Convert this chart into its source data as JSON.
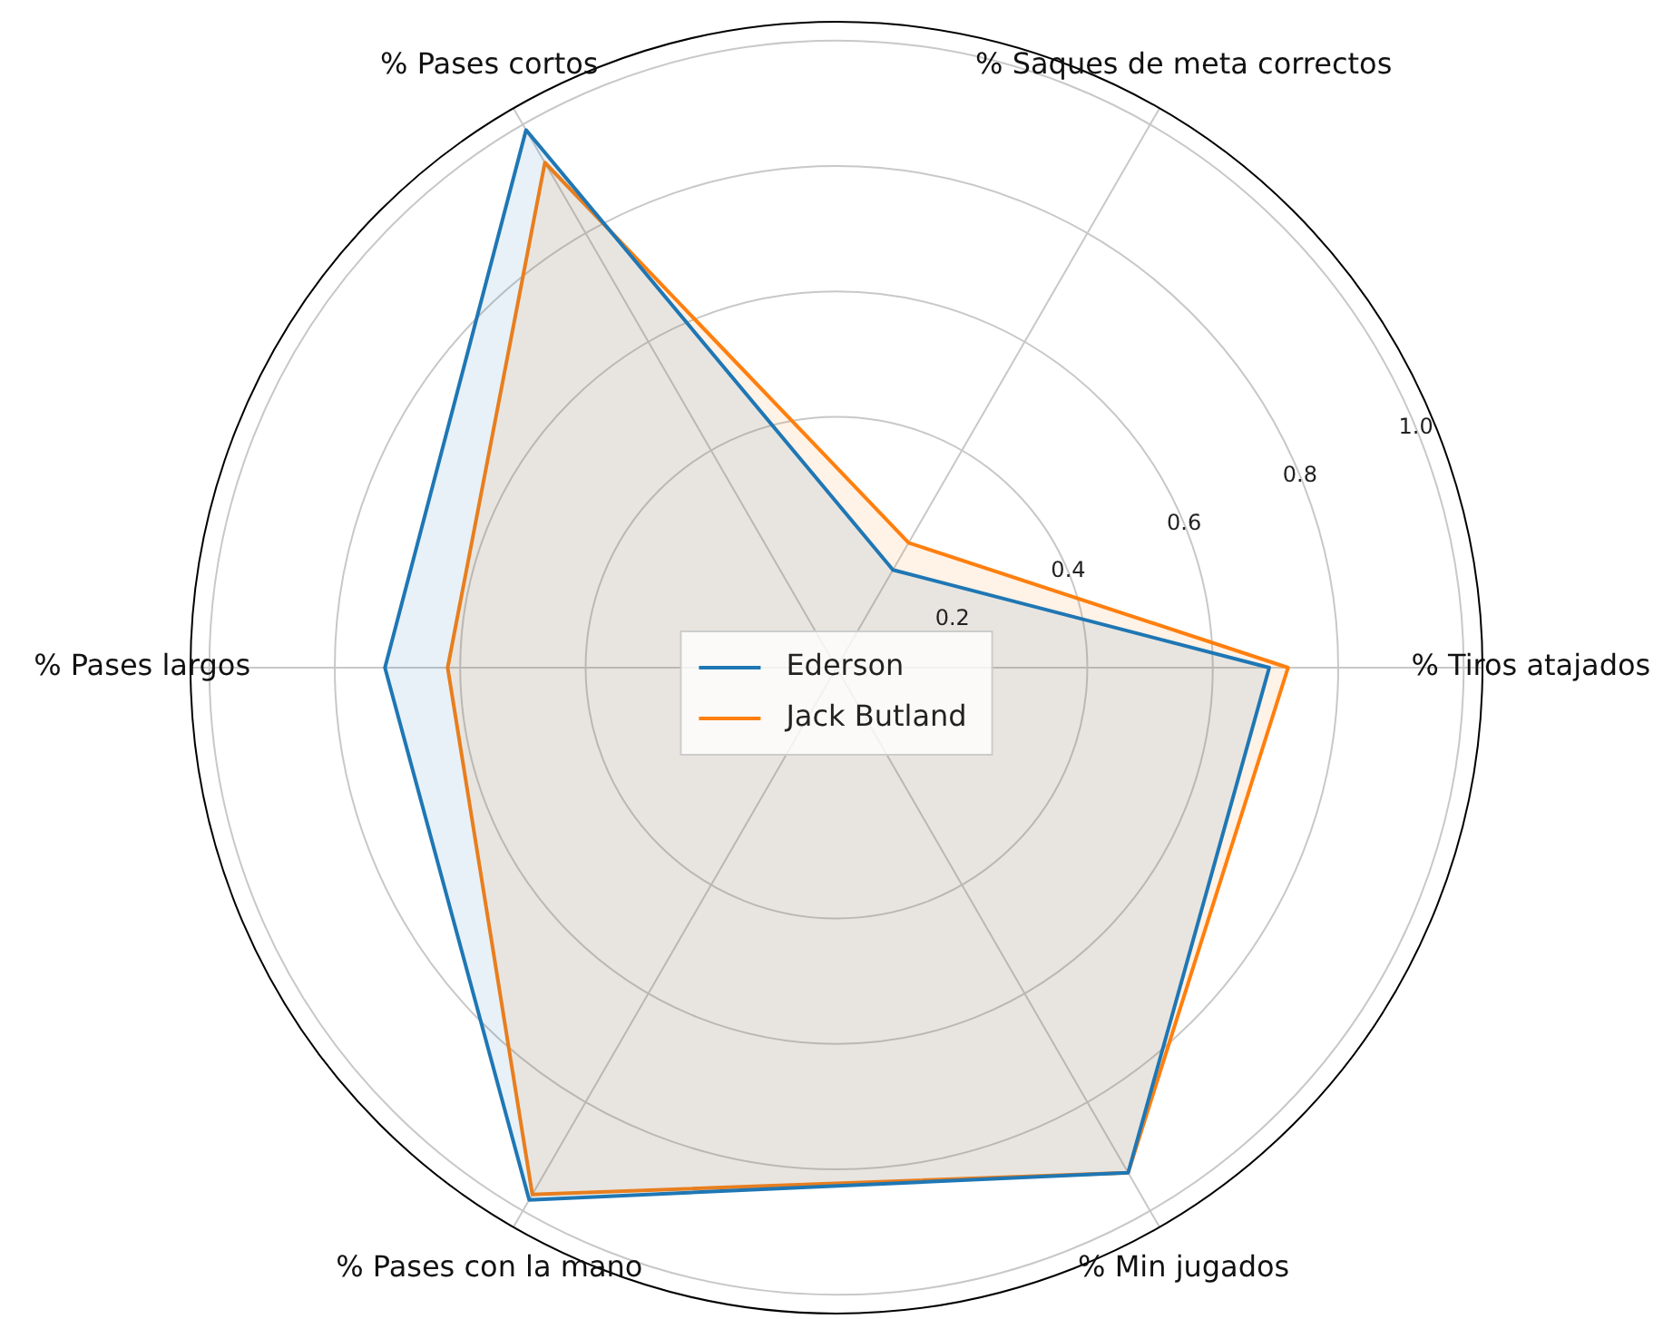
{
  "chart_data": {
    "type": "radar",
    "categories": [
      "% Saques de meta correctos",
      "% Tiros atajados",
      "% Min jugados",
      "% Pases con la mano",
      "% Pases largos",
      "% Pases cortos"
    ],
    "series": [
      {
        "name": "Ederson",
        "color": "#1f77b4",
        "values": [
          0.18,
          0.69,
          0.93,
          0.98,
          0.72,
          0.99
        ]
      },
      {
        "name": "Jack Butland",
        "color": "#ff7f0e",
        "values": [
          0.23,
          0.72,
          0.93,
          0.97,
          0.62,
          0.93
        ]
      }
    ],
    "ylim": [
      0,
      1.03
    ],
    "yticks": [
      0.2,
      0.4,
      0.6,
      0.8,
      {
        "value": 1,
        "label": "1.0"
      }
    ],
    "grid": true,
    "legend": "center",
    "marker": "none",
    "line_style": "solid"
  }
}
